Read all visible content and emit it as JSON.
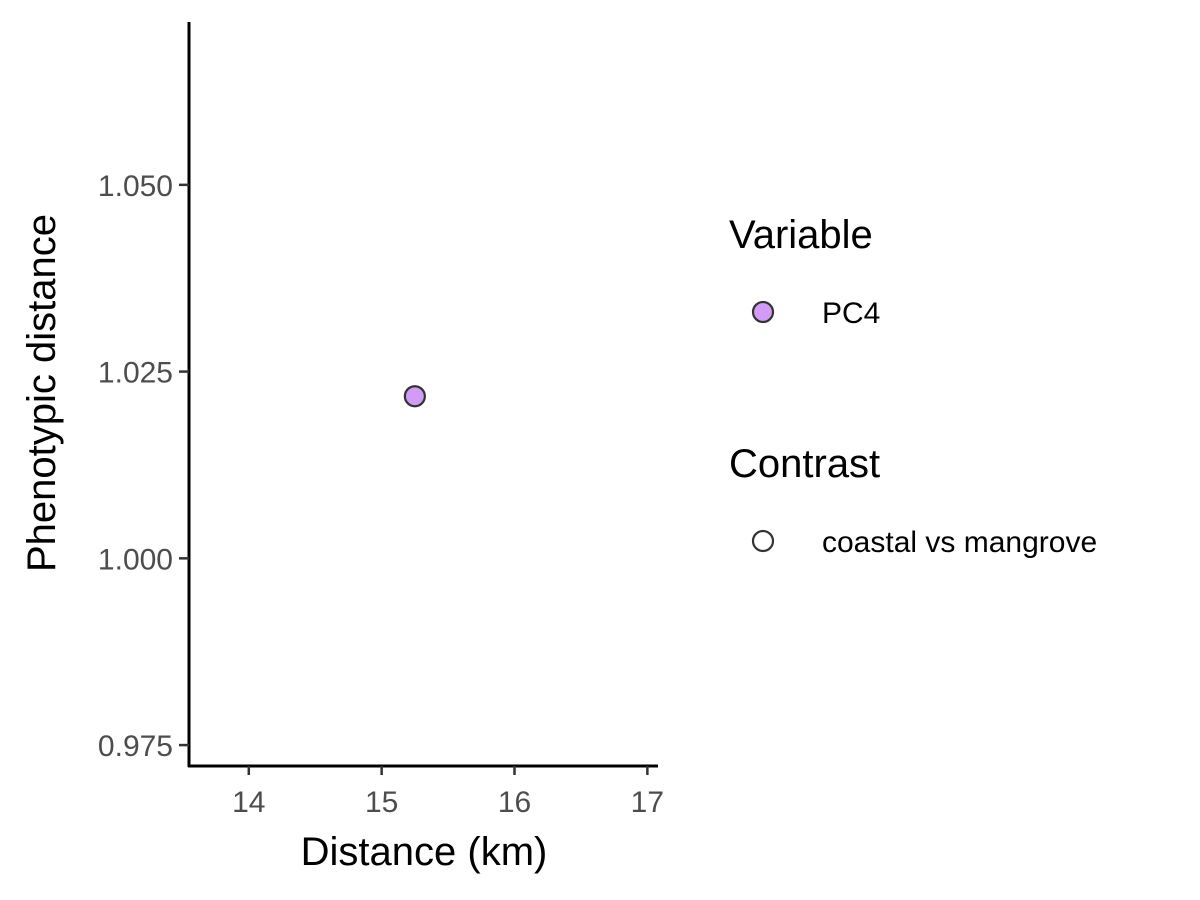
{
  "chart_data": {
    "type": "scatter",
    "xlabel": "Distance (km)",
    "ylabel": "Phenotypic distance",
    "xlim": [
      13.55,
      17.08
    ],
    "ylim": [
      0.9722,
      1.0718
    ],
    "x_ticks": [
      14,
      15,
      16,
      17
    ],
    "x_tick_labels": [
      "14",
      "15",
      "16",
      "17"
    ],
    "y_ticks": [
      0.975,
      1.0,
      1.025,
      1.05
    ],
    "y_tick_labels": [
      "0.975",
      "1.000",
      "1.025",
      "1.050"
    ],
    "grid": false,
    "legend_position": "right",
    "series": [
      {
        "name": "PC4",
        "contrast": "coastal vs mangrove",
        "color": "#D29BF5",
        "stroke": "#333333",
        "points": [
          {
            "x": 15.25,
            "y": 1.0217
          }
        ]
      }
    ],
    "legends": [
      {
        "title": "Variable",
        "items": [
          {
            "label": "PC4",
            "fill": "#D29BF5",
            "stroke": "#333333"
          }
        ]
      },
      {
        "title": "Contrast",
        "items": [
          {
            "label": "coastal vs mangrove",
            "fill": "none",
            "stroke": "#333333"
          }
        ]
      }
    ]
  }
}
